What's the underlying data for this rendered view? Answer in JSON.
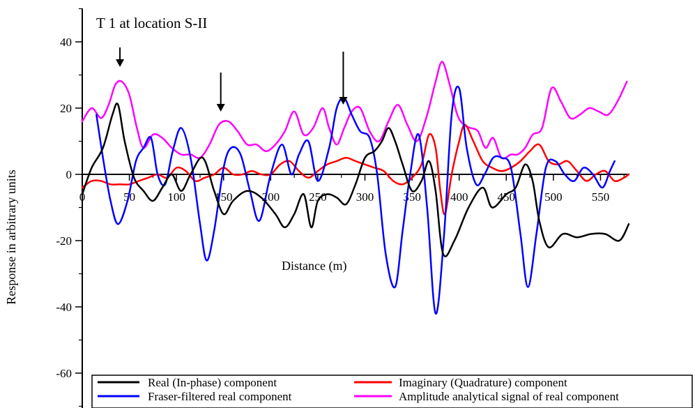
{
  "chart_data": {
    "type": "line",
    "title": "T 1 at location S-II",
    "xlabel": "Distance (m)",
    "ylabel": "Response in arbitrary units",
    "xlim": [
      0,
      580
    ],
    "ylim": [
      -70,
      50
    ],
    "x_ticks": [
      0,
      50,
      100,
      150,
      200,
      250,
      300,
      350,
      400,
      450,
      500,
      550
    ],
    "x_tick_labels": [
      "0",
      "50",
      "100",
      "150",
      "200",
      "250",
      "300",
      "350",
      "400",
      "450",
      "500",
      "550"
    ],
    "y_ticks": [
      -60,
      -40,
      -20,
      0,
      20,
      40
    ],
    "y_tick_labels": [
      "-60",
      "-40",
      "-20",
      "0",
      "20",
      "40"
    ],
    "grid": false,
    "legend_position": "bottom",
    "arrows_at_x": [
      40,
      147,
      277
    ],
    "series": [
      {
        "name": "Real (In-phase) component",
        "color": "#000000",
        "x": [
          0,
          10,
          22,
          32,
          38,
          45,
          55,
          65,
          75,
          85,
          95,
          105,
          115,
          128,
          140,
          150,
          160,
          175,
          190,
          205,
          215,
          225,
          235,
          243,
          250,
          260,
          270,
          280,
          290,
          300,
          310,
          318,
          325,
          332,
          340,
          350,
          360,
          368,
          375,
          383,
          395,
          410,
          425,
          435,
          450,
          460,
          470,
          478,
          485,
          495,
          510,
          525,
          540,
          555,
          570,
          580
        ],
        "y": [
          -6,
          2,
          8,
          18,
          21,
          10,
          -1,
          -5,
          -8,
          -4,
          0,
          -5,
          0,
          5,
          -5,
          -12,
          -8,
          -5,
          -7,
          -12,
          -16,
          -12,
          -6,
          -16,
          -8,
          -6,
          -7,
          -9,
          -3,
          5,
          7,
          10,
          14,
          10,
          3,
          -5,
          -2,
          4,
          -5,
          -24,
          -20,
          -10,
          -4,
          -10,
          -6,
          -4,
          3,
          -2,
          -14,
          -22,
          -18,
          -19,
          -18,
          -18,
          -20,
          -15
        ]
      },
      {
        "name": "Imaginary (Quadrature) component",
        "color": "#ff0000",
        "x": [
          0,
          10,
          20,
          30,
          40,
          50,
          60,
          70,
          80,
          90,
          100,
          110,
          120,
          130,
          140,
          150,
          160,
          170,
          180,
          190,
          200,
          210,
          220,
          230,
          240,
          250,
          260,
          270,
          280,
          290,
          300,
          310,
          320,
          330,
          340,
          350,
          360,
          368,
          375,
          380,
          385,
          392,
          400,
          406,
          415,
          425,
          435,
          445,
          455,
          465,
          475,
          485,
          495,
          505,
          515,
          525,
          535,
          545,
          555,
          565,
          575,
          580
        ],
        "y": [
          -4,
          -2,
          -2,
          -3,
          -3,
          -3,
          -2,
          -1,
          0,
          -1,
          2,
          1,
          -2,
          -1,
          0,
          2,
          0,
          0,
          1,
          0,
          0,
          3,
          4,
          1,
          -1,
          1,
          3,
          4,
          5,
          4,
          3,
          2,
          1,
          -2,
          -3,
          -1,
          3,
          12,
          8,
          -5,
          -12,
          0,
          10,
          15,
          10,
          4,
          2,
          1,
          2,
          4,
          7,
          9,
          4,
          3,
          4,
          1,
          -2,
          0,
          1,
          -2,
          -1,
          0
        ]
      },
      {
        "name": "Fraser-filtered real component",
        "color": "#0000ff",
        "x": [
          15,
          22,
          30,
          38,
          48,
          57,
          65,
          73,
          80,
          88,
          96,
          105,
          115,
          125,
          132,
          140,
          150,
          158,
          168,
          178,
          188,
          200,
          212,
          222,
          230,
          240,
          250,
          262,
          270,
          278,
          286,
          295,
          305,
          313,
          322,
          332,
          340,
          348,
          357,
          366,
          375,
          384,
          392,
          400,
          408,
          418,
          427,
          436,
          445,
          455,
          465,
          473,
          482,
          492,
          502,
          512,
          522,
          532,
          542,
          552,
          560,
          565
        ],
        "y": [
          18,
          5,
          -8,
          -15,
          -8,
          4,
          8,
          11,
          0,
          -3,
          7,
          14,
          5,
          -15,
          -26,
          -17,
          2,
          8,
          6,
          -5,
          -14,
          0,
          9,
          0,
          6,
          10,
          -2,
          8,
          20,
          23,
          18,
          13,
          11,
          0,
          -24,
          -34,
          -17,
          0,
          12,
          -10,
          -42,
          -18,
          18,
          26,
          8,
          -3,
          0,
          5,
          5,
          2,
          -18,
          -34,
          -18,
          2,
          4,
          0,
          -2,
          2,
          0,
          -4,
          1,
          4
        ]
      },
      {
        "name": "Amplitude analytical signal of real component",
        "color": "#ff00ff",
        "x": [
          0,
          10,
          20,
          28,
          35,
          42,
          50,
          58,
          65,
          75,
          85,
          95,
          105,
          115,
          125,
          135,
          145,
          155,
          165,
          175,
          185,
          195,
          205,
          215,
          225,
          235,
          245,
          255,
          262,
          270,
          278,
          286,
          295,
          305,
          315,
          325,
          335,
          345,
          355,
          365,
          375,
          382,
          390,
          398,
          405,
          412,
          420,
          428,
          436,
          445,
          455,
          462,
          470,
          478,
          488,
          498,
          508,
          518,
          528,
          538,
          548,
          558,
          568,
          578
        ],
        "y": [
          16,
          20,
          17,
          21,
          27,
          28,
          24,
          14,
          8,
          12,
          11,
          8,
          6,
          6,
          5,
          9,
          15,
          16,
          13,
          9,
          9,
          7,
          9,
          13,
          19,
          12,
          14,
          20,
          14,
          9,
          14,
          19,
          20,
          13,
          10,
          16,
          21,
          15,
          10,
          17,
          28,
          34,
          27,
          18,
          15,
          14,
          13,
          8,
          11,
          5,
          6,
          6,
          8,
          12,
          14,
          26,
          22,
          17,
          18,
          20,
          19,
          18,
          22,
          28
        ]
      }
    ]
  }
}
